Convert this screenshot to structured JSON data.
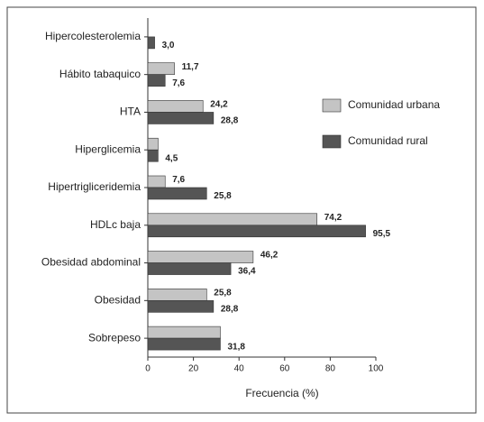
{
  "chart_data": {
    "type": "barh",
    "categories": [
      "Hipercolesterolemia",
      "Hábito tabaquico",
      "HTA",
      "Hiperglicemia",
      "Hipertrigliceridemia",
      "HDLc baja",
      "Obesidad abdominal",
      "Obesidad",
      "Sobrepeso"
    ],
    "series": [
      {
        "name": "Comunidad urbana",
        "color": "#c4c4c4",
        "values": [
          null,
          11.7,
          24.2,
          4.5,
          7.6,
          74.2,
          46.2,
          25.8,
          31.8
        ],
        "value_labels": [
          null,
          "11,7",
          "24,2",
          null,
          "7,6",
          "74,2",
          "46,2",
          "25,8",
          null
        ]
      },
      {
        "name": "Comunidad rural",
        "color": "#555555",
        "values": [
          3.0,
          7.6,
          28.8,
          4.5,
          25.8,
          95.5,
          36.4,
          28.8,
          31.8
        ],
        "value_labels": [
          "3,0",
          "7,6",
          "28,8",
          "4,5",
          "25,8",
          "95,5",
          "36,4",
          "28,8",
          "31,8"
        ]
      }
    ],
    "xlabel": "Frecuencia (%)",
    "xlim": [
      0,
      100
    ],
    "xticks": [
      0,
      20,
      40,
      60,
      80,
      100
    ],
    "legend": "right"
  }
}
